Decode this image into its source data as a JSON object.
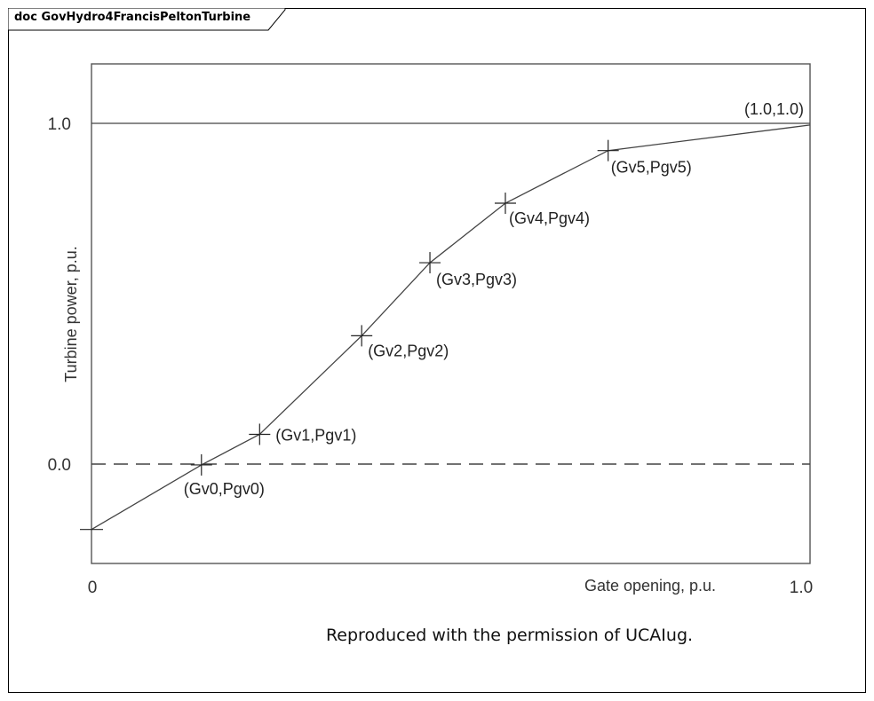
{
  "header": {
    "title": "doc GovHydro4FrancisPeltonTurbine"
  },
  "footer": {
    "credit": "Reproduced with the permission of UCAIug."
  },
  "chart_data": {
    "type": "line",
    "title": "",
    "xlabel": "Gate opening, p.u.",
    "ylabel": "Turbine power, p.u.",
    "xlim": [
      0,
      1.0
    ],
    "ylim": [
      -0.29,
      1.18
    ],
    "x_ticks": [
      "0",
      "1.0"
    ],
    "y_ticks": [
      "1.0",
      "0.0"
    ],
    "grid": false,
    "series": [
      {
        "points": [
          {
            "x": 0.0,
            "y": -0.19,
            "label": ""
          },
          {
            "x": 0.153,
            "y": 0.0,
            "label": "(Gv0,Pgv0)"
          },
          {
            "x": 0.234,
            "y": 0.09,
            "label": "(Gv1,Pgv1)"
          },
          {
            "x": 0.376,
            "y": 0.38,
            "label": "(Gv2,Pgv2)"
          },
          {
            "x": 0.471,
            "y": 0.595,
            "label": "(Gv3,Pgv3)"
          },
          {
            "x": 0.576,
            "y": 0.77,
            "label": "(Gv4,Pgv4)"
          },
          {
            "x": 0.719,
            "y": 0.925,
            "label": "(Gv5,Pgv5)"
          },
          {
            "x": 1.0,
            "y": 1.0,
            "label": "(1.0,1.0)"
          }
        ]
      }
    ],
    "reference_lines": [
      {
        "y": 1.0,
        "style": "solid"
      },
      {
        "y": 0.0,
        "style": "dashed"
      }
    ]
  },
  "colors": {
    "line": "#444444",
    "axis": "#555555",
    "frame": "#000000"
  }
}
